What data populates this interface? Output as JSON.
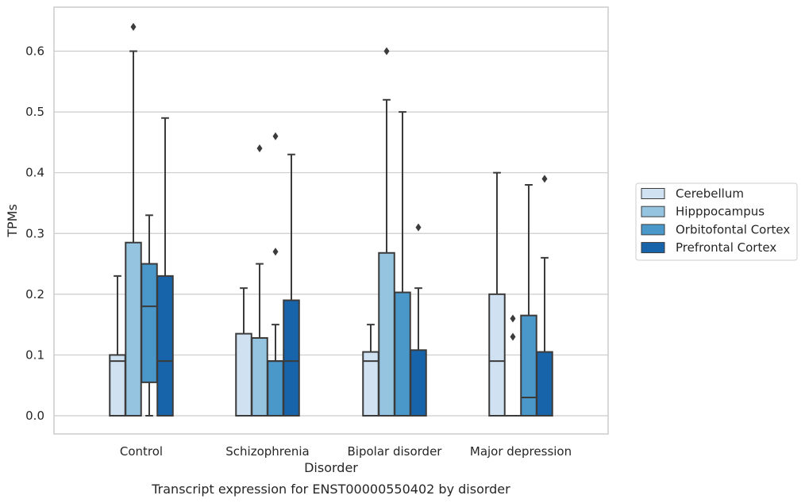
{
  "chart_data": {
    "type": "box",
    "caption": "Transcript expression for ENST00000550402 by disorder",
    "xlabel": "Disorder",
    "ylabel": "TPMs",
    "ylim": [
      -0.03,
      0.67
    ],
    "yticks": [
      0.0,
      0.1,
      0.2,
      0.3,
      0.4,
      0.5,
      0.6
    ],
    "ytick_labels": [
      "0.0",
      "0.1",
      "0.2",
      "0.3",
      "0.4",
      "0.5",
      "0.6"
    ],
    "grid": "horizontal",
    "legend_position": "right",
    "categories": [
      "Control",
      "Schizophrenia",
      "Bipolar disorder",
      "Major depression"
    ],
    "series": [
      {
        "name": "Cerebellum",
        "color": "#d0e1f2",
        "boxes": [
          {
            "whislo": 0.0,
            "q1": 0.0,
            "med": 0.09,
            "q3": 0.1,
            "whishi": 0.23,
            "fliers": []
          },
          {
            "whislo": 0.0,
            "q1": 0.0,
            "med": 0.0,
            "q3": 0.135,
            "whishi": 0.21,
            "fliers": []
          },
          {
            "whislo": 0.0,
            "q1": 0.0,
            "med": 0.09,
            "q3": 0.105,
            "whishi": 0.15,
            "fliers": []
          },
          {
            "whislo": 0.0,
            "q1": 0.0,
            "med": 0.09,
            "q3": 0.2,
            "whishi": 0.4,
            "fliers": []
          }
        ]
      },
      {
        "name": "Hipppocampus",
        "color": "#94c4df",
        "boxes": [
          {
            "whislo": 0.0,
            "q1": 0.0,
            "med": 0.0,
            "q3": 0.285,
            "whishi": 0.6,
            "fliers": [
              0.64
            ]
          },
          {
            "whislo": 0.0,
            "q1": 0.0,
            "med": 0.0,
            "q3": 0.128,
            "whishi": 0.25,
            "fliers": [
              0.44
            ]
          },
          {
            "whislo": 0.0,
            "q1": 0.0,
            "med": 0.0,
            "q3": 0.268,
            "whishi": 0.52,
            "fliers": [
              0.6
            ]
          },
          {
            "whislo": 0.0,
            "q1": 0.0,
            "med": 0.0,
            "q3": 0.0,
            "whishi": 0.0,
            "fliers": [
              0.13,
              0.16
            ]
          }
        ]
      },
      {
        "name": "Orbitofontal Cortex",
        "color": "#4a98c9",
        "boxes": [
          {
            "whislo": 0.0,
            "q1": 0.055,
            "med": 0.18,
            "q3": 0.25,
            "whishi": 0.33,
            "fliers": []
          },
          {
            "whislo": 0.0,
            "q1": 0.0,
            "med": 0.09,
            "q3": 0.09,
            "whishi": 0.15,
            "fliers": [
              0.27,
              0.46
            ]
          },
          {
            "whislo": 0.0,
            "q1": 0.0,
            "med": 0.0,
            "q3": 0.203,
            "whishi": 0.5,
            "fliers": []
          },
          {
            "whislo": 0.0,
            "q1": 0.0,
            "med": 0.03,
            "q3": 0.165,
            "whishi": 0.38,
            "fliers": []
          }
        ]
      },
      {
        "name": "Prefrontal Cortex",
        "color": "#1764ab",
        "boxes": [
          {
            "whislo": 0.0,
            "q1": 0.0,
            "med": 0.09,
            "q3": 0.23,
            "whishi": 0.49,
            "fliers": []
          },
          {
            "whislo": 0.0,
            "q1": 0.0,
            "med": 0.09,
            "q3": 0.19,
            "whishi": 0.43,
            "fliers": []
          },
          {
            "whislo": 0.0,
            "q1": 0.0,
            "med": 0.0,
            "q3": 0.108,
            "whishi": 0.21,
            "fliers": [
              0.31
            ]
          },
          {
            "whislo": 0.0,
            "q1": 0.0,
            "med": 0.0,
            "q3": 0.105,
            "whishi": 0.26,
            "fliers": [
              0.39
            ]
          }
        ]
      }
    ]
  }
}
